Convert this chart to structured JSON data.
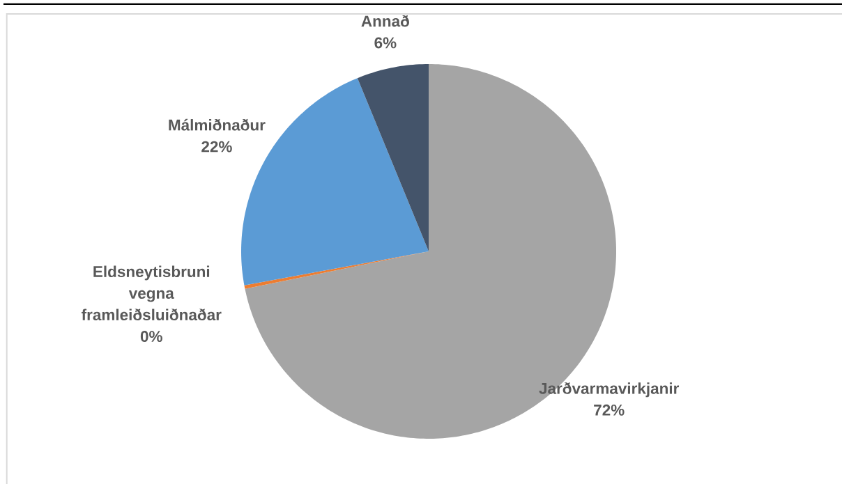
{
  "chart_data": {
    "type": "pie",
    "categories": [
      "Jarðvarmavirkjanir",
      "Eldsneytisbruni vegna framleiðsluiðnaðar",
      "Málmiðnaður",
      "Annað"
    ],
    "values": [
      71.8,
      0.3,
      21.7,
      6.2
    ],
    "colors": [
      "#a5a5a5",
      "#ed7d31",
      "#5b9bd5",
      "#44546a"
    ],
    "value_labels": [
      "72%",
      "0%",
      "22%",
      "6%"
    ]
  }
}
